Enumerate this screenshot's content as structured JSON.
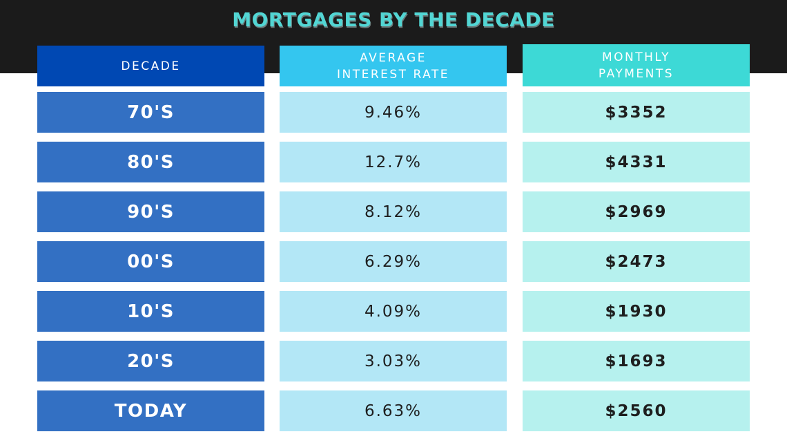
{
  "colors": {
    "background_band": "#1b1b1b",
    "title": "#52d6d4",
    "decade_header": "#0048b3",
    "rate_header": "#34c6ef",
    "payment_header": "#3dd9d6",
    "decade_cell": "#3370c3",
    "rate_cell": "#b3e7f6",
    "payment_cell": "#b6f1ee"
  },
  "chart_data": {
    "type": "table",
    "title": "MORTGAGES BY THE DECADE",
    "columns": [
      "DECADE",
      "AVERAGE\nINTEREST RATE",
      "MONTHLY\nPAYMENTS"
    ],
    "rows": [
      {
        "decade": "70'S",
        "rate": "9.46%",
        "payment": "$3352"
      },
      {
        "decade": "80'S",
        "rate": "12.7%",
        "payment": "$4331"
      },
      {
        "decade": "90'S",
        "rate": "8.12%",
        "payment": "$2969"
      },
      {
        "decade": "00'S",
        "rate": "6.29%",
        "payment": "$2473"
      },
      {
        "decade": "10'S",
        "rate": "4.09%",
        "payment": "$1930"
      },
      {
        "decade": "20'S",
        "rate": "3.03%",
        "payment": "$1693"
      },
      {
        "decade": "TODAY",
        "rate": "6.63%",
        "payment": "$2560"
      }
    ]
  }
}
